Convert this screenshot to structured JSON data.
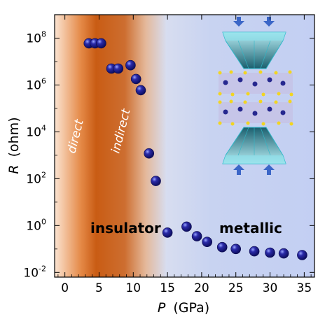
{
  "chart_data": {
    "type": "scatter",
    "title": "",
    "xlabel": {
      "symbol": "P",
      "unit": "(GPa)"
    },
    "ylabel": {
      "symbol": "R",
      "unit": "(ohm)"
    },
    "xlim": [
      -1.5,
      36.5
    ],
    "ylim": [
      -2.2,
      9.0
    ],
    "y_scale": "log10",
    "x_ticks": [
      0,
      5,
      10,
      15,
      20,
      25,
      30,
      35
    ],
    "y_ticks": [
      {
        "base": "10",
        "exp": "8"
      },
      {
        "base": "10",
        "exp": "6"
      },
      {
        "base": "10",
        "exp": "4"
      },
      {
        "base": "10",
        "exp": "2"
      },
      {
        "base": "10",
        "exp": "0"
      },
      {
        "base": "10",
        "exp": "-2"
      }
    ],
    "grid": false,
    "legend": "none",
    "regions": [
      {
        "label": "direct",
        "x_from": -1.5,
        "x_to": 3
      },
      {
        "label": "indirect",
        "x_from": 3,
        "x_to": 11
      },
      {
        "label": "insulator"
      },
      {
        "label": "metallic"
      }
    ],
    "series": [
      {
        "x": [
          3.5,
          4.4,
          5.3,
          6.8,
          7.8,
          9.6,
          10.4,
          11.1,
          12.3,
          13.3,
          15.0,
          17.8,
          19.3,
          20.8,
          23.0,
          25.0,
          27.7,
          30.0,
          32.0,
          34.7
        ],
        "y": [
          60000000,
          60000000,
          60000000,
          5000000,
          5000000,
          7000000,
          1800000,
          600000,
          1200,
          80,
          0.5,
          0.9,
          0.35,
          0.2,
          0.12,
          0.1,
          0.08,
          0.07,
          0.065,
          0.055
        ]
      }
    ],
    "colors": {
      "marker": "#15158a",
      "direct_band": "#e07b32",
      "indirect_band": "#c65a12",
      "metallic_band": "#bccbf0"
    },
    "inset": "diamond anvil cell schematic with layered crystal between anvils"
  }
}
